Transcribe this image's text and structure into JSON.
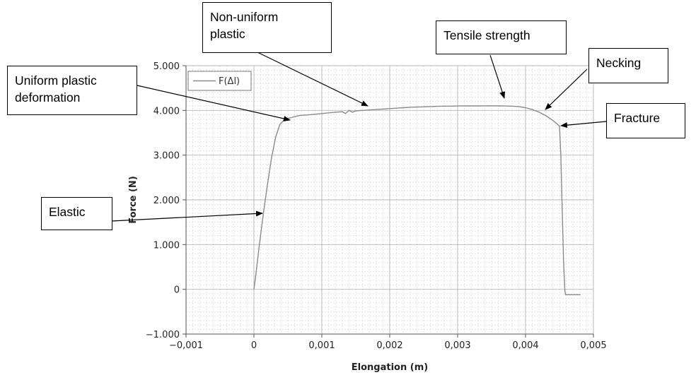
{
  "chart_data": {
    "type": "line",
    "xlabel": "Elongation (m)",
    "ylabel": "Force (N)",
    "xlim": [
      -0.001,
      0.005
    ],
    "ylim": [
      -1000,
      5000
    ],
    "x_ticks": [
      "−0,001",
      "0",
      "0,001",
      "0,002",
      "0,003",
      "0,004",
      "0,005"
    ],
    "x_tick_values": [
      -0.001,
      0,
      0.001,
      0.002,
      0.003,
      0.004,
      0.005
    ],
    "y_ticks": [
      "5.000",
      "4.000",
      "3.000",
      "2.000",
      "1.000",
      "0",
      "−1.000"
    ],
    "y_tick_values": [
      5000,
      4000,
      3000,
      2000,
      1000,
      0,
      -1000
    ],
    "grid": true,
    "legend_position": "top-left",
    "series": [
      {
        "name": "F(Δl)",
        "color": "#8a8a8a",
        "x": [
          0,
          3e-05,
          8e-05,
          0.00014,
          0.0002,
          0.00026,
          0.00032,
          0.00038,
          0.00044,
          0.0005,
          0.00055,
          0.0006,
          0.00065,
          0.0007,
          0.0008,
          0.0009,
          0.001,
          0.0011,
          0.0012,
          0.0013,
          0.00135,
          0.0014,
          0.00145,
          0.0015,
          0.0016,
          0.0017,
          0.0018,
          0.0019,
          0.002,
          0.0021,
          0.0022,
          0.0023,
          0.0024,
          0.0025,
          0.0026,
          0.0027,
          0.0028,
          0.0029,
          0.003,
          0.0031,
          0.0032,
          0.0033,
          0.0034,
          0.0035,
          0.0036,
          0.0037,
          0.0038,
          0.0039,
          0.004,
          0.0041,
          0.0042,
          0.0043,
          0.0044,
          0.0045,
          0.00452,
          0.00454,
          0.00456,
          0.00458,
          0.00459,
          0.0046,
          0.0047,
          0.00481
        ],
        "y": [
          0,
          350,
          1000,
          1700,
          2350,
          2950,
          3400,
          3680,
          3780,
          3820,
          3840,
          3860,
          3880,
          3890,
          3900,
          3915,
          3930,
          3945,
          3960,
          3970,
          3930,
          4000,
          3960,
          3990,
          4000,
          4010,
          4020,
          4030,
          4040,
          4050,
          4060,
          4070,
          4075,
          4080,
          4085,
          4090,
          4095,
          4095,
          4098,
          4100,
          4100,
          4100,
          4102,
          4103,
          4100,
          4098,
          4095,
          4085,
          4060,
          4020,
          3960,
          3880,
          3780,
          3650,
          3000,
          1800,
          600,
          -50,
          -120,
          -120,
          -120,
          -120
        ]
      }
    ]
  },
  "annotations": {
    "elastic": "Elastic",
    "uniform_plastic": "Uniform plastic\ndeformation",
    "non_uniform_plastic": "Non-uniform\nplastic",
    "tensile_strength": "Tensile strength",
    "necking": "Necking",
    "fracture": "Fracture"
  }
}
